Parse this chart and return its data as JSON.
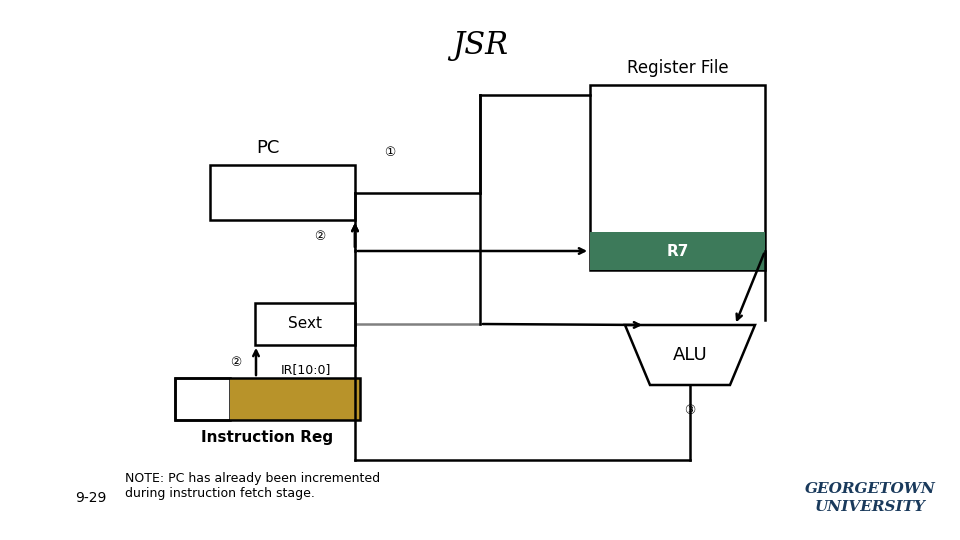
{
  "title": "JSR",
  "background_color": "#ffffff",
  "line_color": "#000000",
  "r7_color": "#3d7a5a",
  "ir_right_color": "#b8932a",
  "note_text": "NOTE: PC has already been incremented\nduring instruction fetch stage.",
  "slide_number": "9-29",
  "georgetown_color": "#1a3a5c"
}
